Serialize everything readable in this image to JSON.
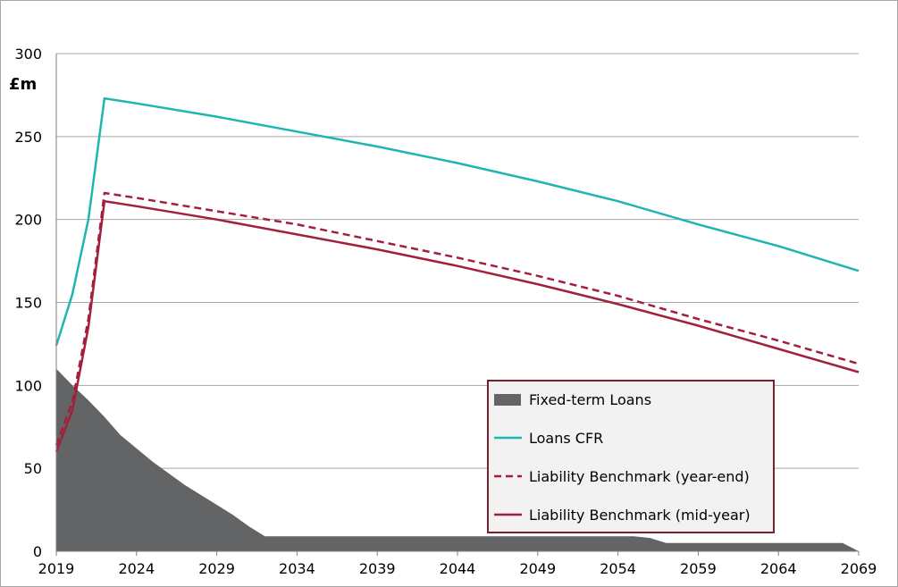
{
  "chart_data": {
    "type": "line",
    "ylabel": "£m",
    "ylim": [
      0,
      300
    ],
    "xlim": [
      2019,
      2069
    ],
    "x_ticks": [
      "2019",
      "2024",
      "2029",
      "2034",
      "2039",
      "2044",
      "2049",
      "2054",
      "2059",
      "2064",
      "2069"
    ],
    "y_ticks": [
      "0",
      "50",
      "100",
      "150",
      "200",
      "250",
      "300"
    ],
    "grid": "horizontal",
    "legend_position": "bottom-right",
    "colors": {
      "fixed_term_loans": "#636466",
      "loans_cfr": "#1fb5b0",
      "lb_year_end": "#a31f3c",
      "lb_mid_year": "#a31f3c"
    },
    "series": [
      {
        "name": "Fixed-term Loans",
        "style": "area",
        "points": [
          [
            2019,
            110
          ],
          [
            2020,
            100
          ],
          [
            2021,
            91
          ],
          [
            2022,
            81
          ],
          [
            2023,
            70
          ],
          [
            2024,
            62
          ],
          [
            2025,
            54
          ],
          [
            2026,
            47
          ],
          [
            2027,
            40
          ],
          [
            2028,
            34
          ],
          [
            2029,
            28
          ],
          [
            2030,
            22
          ],
          [
            2031,
            15
          ],
          [
            2032,
            9
          ],
          [
            2033,
            9
          ],
          [
            2055,
            9
          ],
          [
            2056,
            8
          ],
          [
            2057,
            5
          ],
          [
            2068,
            5
          ],
          [
            2069,
            0
          ]
        ]
      },
      {
        "name": "Loans CFR",
        "style": "solid",
        "points": [
          [
            2019,
            124
          ],
          [
            2020,
            155
          ],
          [
            2021,
            200
          ],
          [
            2022,
            273
          ],
          [
            2024,
            270
          ],
          [
            2029,
            262
          ],
          [
            2034,
            253
          ],
          [
            2039,
            244
          ],
          [
            2044,
            234
          ],
          [
            2049,
            223
          ],
          [
            2054,
            211
          ],
          [
            2059,
            197
          ],
          [
            2064,
            184
          ],
          [
            2069,
            169
          ]
        ]
      },
      {
        "name": "Liability Benchmark (year-end)",
        "style": "dashed",
        "points": [
          [
            2019,
            64
          ],
          [
            2020,
            90
          ],
          [
            2021,
            140
          ],
          [
            2022,
            216
          ],
          [
            2024,
            213
          ],
          [
            2029,
            205
          ],
          [
            2034,
            197
          ],
          [
            2039,
            187
          ],
          [
            2044,
            177
          ],
          [
            2049,
            166
          ],
          [
            2054,
            154
          ],
          [
            2059,
            140
          ],
          [
            2064,
            127
          ],
          [
            2069,
            113
          ]
        ]
      },
      {
        "name": "Liability Benchmark (mid-year)",
        "style": "solid",
        "points": [
          [
            2019,
            60
          ],
          [
            2020,
            85
          ],
          [
            2021,
            135
          ],
          [
            2022,
            211
          ],
          [
            2024,
            208
          ],
          [
            2029,
            200
          ],
          [
            2034,
            191
          ],
          [
            2039,
            182
          ],
          [
            2044,
            172
          ],
          [
            2049,
            161
          ],
          [
            2054,
            149
          ],
          [
            2059,
            136
          ],
          [
            2064,
            122
          ],
          [
            2069,
            108
          ]
        ]
      }
    ]
  }
}
